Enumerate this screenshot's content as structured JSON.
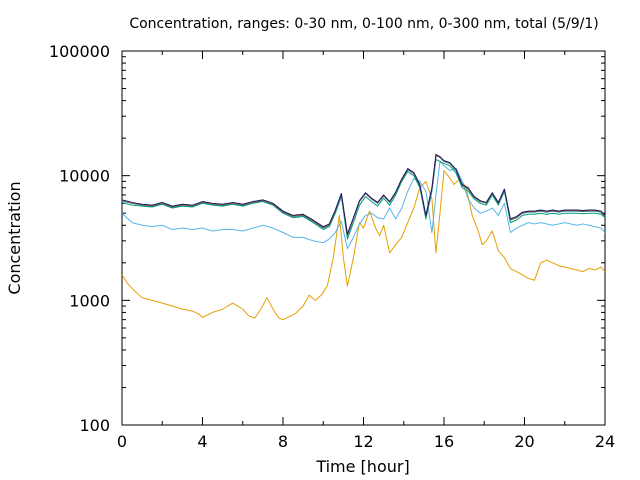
{
  "chart_data": {
    "type": "line",
    "title": "Concentration, ranges: 0-30 nm, 0-100 nm, 0-300 nm, total (5/9/1)",
    "xlabel": "Time [hour]",
    "ylabel": "Concentration",
    "xlim": [
      0,
      24
    ],
    "ylim": [
      100,
      100000
    ],
    "yscale": "log",
    "xticks": [
      "0",
      "4",
      "8",
      "12",
      "16",
      "20",
      "24"
    ],
    "yticks": [
      "100",
      "1000",
      "10000",
      "100000"
    ],
    "grid": false,
    "legend": "none",
    "series": [
      {
        "color": "#e69f00",
        "x": [
          0,
          0.3,
          0.6,
          1,
          1.5,
          2,
          2.5,
          3,
          3.5,
          3.8,
          4,
          4.5,
          5,
          5.5,
          6,
          6.3,
          6.6,
          6.9,
          7.2,
          7.6,
          7.8,
          8,
          8.3,
          8.6,
          9,
          9.3,
          9.6,
          9.9,
          10.2,
          10.5,
          10.8,
          11,
          11.2,
          11.5,
          11.8,
          12,
          12.3,
          12.6,
          12.8,
          13,
          13.3,
          13.6,
          13.9,
          14.2,
          14.5,
          14.8,
          15.1,
          15.4,
          15.6,
          15.8,
          16,
          16.2,
          16.5,
          16.8,
          17.1,
          17.4,
          17.7,
          17.9,
          18.1,
          18.4,
          18.7,
          19,
          19.3,
          19.6,
          19.9,
          20.2,
          20.5,
          20.8,
          21.1,
          21.4,
          21.7,
          22,
          22.3,
          22.6,
          22.9,
          23.2,
          23.5,
          23.8,
          24
        ],
        "values": [
          1600,
          1350,
          1200,
          1050,
          1000,
          950,
          900,
          850,
          820,
          780,
          730,
          800,
          850,
          950,
          850,
          750,
          720,
          850,
          1050,
          800,
          720,
          700,
          740,
          780,
          900,
          1100,
          1000,
          1100,
          1300,
          2200,
          4800,
          2200,
          1300,
          2200,
          4200,
          3800,
          5200,
          3800,
          3300,
          4000,
          2400,
          2800,
          3200,
          4200,
          5500,
          8000,
          9000,
          6500,
          2400,
          5000,
          11000,
          10000,
          8500,
          9500,
          8000,
          4800,
          3600,
          2800,
          3000,
          3600,
          2500,
          2200,
          1800,
          1700,
          1600,
          1500,
          1450,
          2000,
          2100,
          2000,
          1900,
          1850,
          1800,
          1750,
          1700,
          1800,
          1750,
          1850,
          1700
        ]
      },
      {
        "color": "#56b4e9",
        "x": [
          0,
          0.5,
          1,
          1.5,
          2,
          2.5,
          3,
          3.5,
          4,
          4.5,
          5,
          5.5,
          6,
          6.5,
          7,
          7.5,
          8,
          8.5,
          9,
          9.5,
          10,
          10.3,
          10.6,
          10.9,
          11.2,
          11.5,
          11.8,
          12.1,
          12.4,
          12.7,
          13,
          13.3,
          13.6,
          13.9,
          14.2,
          14.5,
          14.8,
          15.1,
          15.4,
          15.6,
          15.8,
          16,
          16.3,
          16.6,
          16.9,
          17.2,
          17.5,
          17.8,
          18.1,
          18.4,
          18.7,
          19,
          19.3,
          19.6,
          19.9,
          20.2,
          20.5,
          20.8,
          21.1,
          21.4,
          21.7,
          22,
          22.3,
          22.6,
          22.9,
          23.2,
          23.5,
          23.8,
          24
        ],
        "values": [
          5000,
          4200,
          4000,
          3900,
          4000,
          3700,
          3800,
          3700,
          3800,
          3600,
          3700,
          3700,
          3600,
          3800,
          4000,
          3800,
          3500,
          3200,
          3200,
          3000,
          2900,
          3100,
          3500,
          4300,
          2600,
          3200,
          4100,
          4800,
          5000,
          4600,
          4500,
          5500,
          4500,
          5500,
          7500,
          9500,
          9000,
          7500,
          3500,
          7000,
          13000,
          12000,
          11000,
          11500,
          9000,
          6500,
          5500,
          5000,
          5200,
          5500,
          4800,
          6000,
          3500,
          3800,
          4000,
          4200,
          4100,
          4200,
          4100,
          4000,
          4100,
          4200,
          4100,
          4000,
          4100,
          4000,
          3900,
          3800,
          3500
        ]
      },
      {
        "color": "#009e73",
        "x": [
          0,
          0.5,
          1,
          1.5,
          2,
          2.5,
          3,
          3.5,
          4,
          4.5,
          5,
          5.5,
          6,
          6.5,
          7,
          7.5,
          8,
          8.5,
          9,
          9.5,
          10,
          10.3,
          10.6,
          10.9,
          11.2,
          11.5,
          11.8,
          12.1,
          12.4,
          12.7,
          13,
          13.3,
          13.6,
          13.9,
          14.2,
          14.5,
          14.8,
          15.1,
          15.4,
          15.6,
          15.8,
          16,
          16.3,
          16.6,
          16.9,
          17.2,
          17.5,
          17.8,
          18.1,
          18.4,
          18.7,
          19,
          19.3,
          19.6,
          19.9,
          20.2,
          20.5,
          20.8,
          21.1,
          21.4,
          21.7,
          22,
          22.3,
          22.6,
          22.9,
          23.2,
          23.5,
          23.8,
          24
        ],
        "values": [
          6100,
          5800,
          5700,
          5600,
          5900,
          5500,
          5700,
          5600,
          6000,
          5800,
          5700,
          5900,
          5700,
          6000,
          6200,
          5800,
          5000,
          4600,
          4700,
          4200,
          3700,
          3900,
          5000,
          6800,
          3100,
          4200,
          5800,
          6800,
          6200,
          5700,
          6600,
          5800,
          7000,
          9000,
          10800,
          10000,
          8000,
          4500,
          7500,
          13500,
          13000,
          12500,
          12000,
          10500,
          8000,
          7500,
          6500,
          6000,
          5800,
          7000,
          5800,
          7500,
          4200,
          4400,
          4800,
          4900,
          4900,
          5000,
          4900,
          5000,
          4900,
          5000,
          5000,
          5000,
          4950,
          5000,
          5000,
          4900,
          4600
        ]
      },
      {
        "color": "#0072b2",
        "x": [
          0,
          0.5,
          1,
          1.5,
          2,
          2.5,
          3,
          3.5,
          4,
          4.5,
          5,
          5.5,
          6,
          6.5,
          7,
          7.5,
          8,
          8.5,
          9,
          9.5,
          10,
          10.3,
          10.6,
          10.9,
          11.2,
          11.5,
          11.8,
          12.1,
          12.4,
          12.7,
          13,
          13.3,
          13.6,
          13.9,
          14.2,
          14.5,
          14.8,
          15.1,
          15.4,
          15.6,
          15.8,
          16,
          16.3,
          16.6,
          16.9,
          17.2,
          17.5,
          17.8,
          18.1,
          18.4,
          18.7,
          19,
          19.3,
          19.6,
          19.9,
          20.2,
          20.5,
          20.8,
          21.1,
          21.4,
          21.7,
          22,
          22.3,
          22.6,
          22.9,
          23.2,
          23.5,
          23.8,
          24
        ],
        "values": [
          6300,
          6000,
          5800,
          5700,
          6000,
          5600,
          5800,
          5700,
          6100,
          5900,
          5800,
          6000,
          5800,
          6100,
          6300,
          5900,
          5100,
          4700,
          4800,
          4300,
          3800,
          4000,
          5200,
          7100,
          3300,
          4500,
          6200,
          7200,
          6500,
          6000,
          6900,
          6100,
          7300,
          9300,
          11200,
          10400,
          8300,
          4700,
          7800,
          14500,
          14000,
          13000,
          12500,
          11000,
          8300,
          7800,
          6700,
          6200,
          6000,
          7200,
          6000,
          7700,
          4400,
          4600,
          5000,
          5100,
          5100,
          5200,
          5100,
          5200,
          5100,
          5200,
          5200,
          5200,
          5150,
          5200,
          5200,
          5100,
          4700
        ]
      },
      {
        "color": "#d55e00",
        "x": [
          0,
          0.5,
          1,
          1.5,
          2,
          2.5,
          3,
          3.5,
          4,
          4.5,
          5,
          5.5,
          6,
          6.5,
          7,
          7.5,
          8,
          8.5,
          9,
          9.5,
          10,
          10.3,
          10.6,
          10.9,
          11.2,
          11.5,
          11.8,
          12.1,
          12.4,
          12.7,
          13,
          13.3,
          13.6,
          13.9,
          14.2,
          14.5,
          14.8,
          15.1,
          15.4,
          15.6,
          15.8,
          16,
          16.3,
          16.6,
          16.9,
          17.2,
          17.5,
          17.8,
          18.1,
          18.4,
          18.7,
          19,
          19.3,
          19.6,
          19.9,
          20.2,
          20.5,
          20.8,
          21.1,
          21.4,
          21.7,
          22,
          22.3,
          22.6,
          22.9,
          23.2,
          23.5,
          23.8,
          24
        ],
        "values": [
          6350,
          6050,
          5850,
          5750,
          6050,
          5650,
          5850,
          5750,
          6150,
          5950,
          5850,
          6050,
          5850,
          6150,
          6350,
          5950,
          5150,
          4750,
          4850,
          4350,
          3850,
          4050,
          5250,
          7150,
          3350,
          4550,
          6250,
          7250,
          6550,
          6050,
          6950,
          6150,
          7350,
          9350,
          11300,
          10500,
          8400,
          4750,
          7900,
          14600,
          14100,
          13100,
          12600,
          11100,
          8400,
          7900,
          6750,
          6250,
          6050,
          7250,
          6050,
          7750,
          4450,
          4650,
          5050,
          5150,
          5150,
          5250,
          5150,
          5250,
          5150,
          5250,
          5250,
          5250,
          5200,
          5250,
          5250,
          5150,
          4750
        ]
      },
      {
        "color": "#191970",
        "x": [
          0,
          0.5,
          1,
          1.5,
          2,
          2.5,
          3,
          3.5,
          4,
          4.5,
          5,
          5.5,
          6,
          6.5,
          7,
          7.5,
          8,
          8.5,
          9,
          9.5,
          10,
          10.3,
          10.6,
          10.9,
          11.2,
          11.5,
          11.8,
          12.1,
          12.4,
          12.7,
          13,
          13.3,
          13.6,
          13.9,
          14.2,
          14.5,
          14.8,
          15.1,
          15.4,
          15.6,
          15.8,
          16,
          16.3,
          16.6,
          16.9,
          17.2,
          17.5,
          17.8,
          18.1,
          18.4,
          18.7,
          19,
          19.3,
          19.6,
          19.9,
          20.2,
          20.5,
          20.8,
          21.1,
          21.4,
          21.7,
          22,
          22.3,
          22.6,
          22.9,
          23.2,
          23.5,
          23.8,
          24
        ],
        "values": [
          6400,
          6100,
          5900,
          5800,
          6100,
          5700,
          5900,
          5800,
          6200,
          6000,
          5900,
          6100,
          5900,
          6200,
          6400,
          6000,
          5200,
          4800,
          4900,
          4400,
          3900,
          4100,
          5300,
          7200,
          3400,
          4600,
          6300,
          7300,
          6600,
          6100,
          7000,
          6200,
          7400,
          9400,
          11400,
          10600,
          8500,
          4800,
          8000,
          14800,
          14200,
          13200,
          12700,
          11200,
          8500,
          8000,
          6800,
          6300,
          6100,
          7300,
          6100,
          7800,
          4500,
          4700,
          5100,
          5200,
          5200,
          5300,
          5200,
          5300,
          5200,
          5300,
          5300,
          5300,
          5250,
          5300,
          5300,
          5200,
          4800
        ]
      }
    ]
  }
}
